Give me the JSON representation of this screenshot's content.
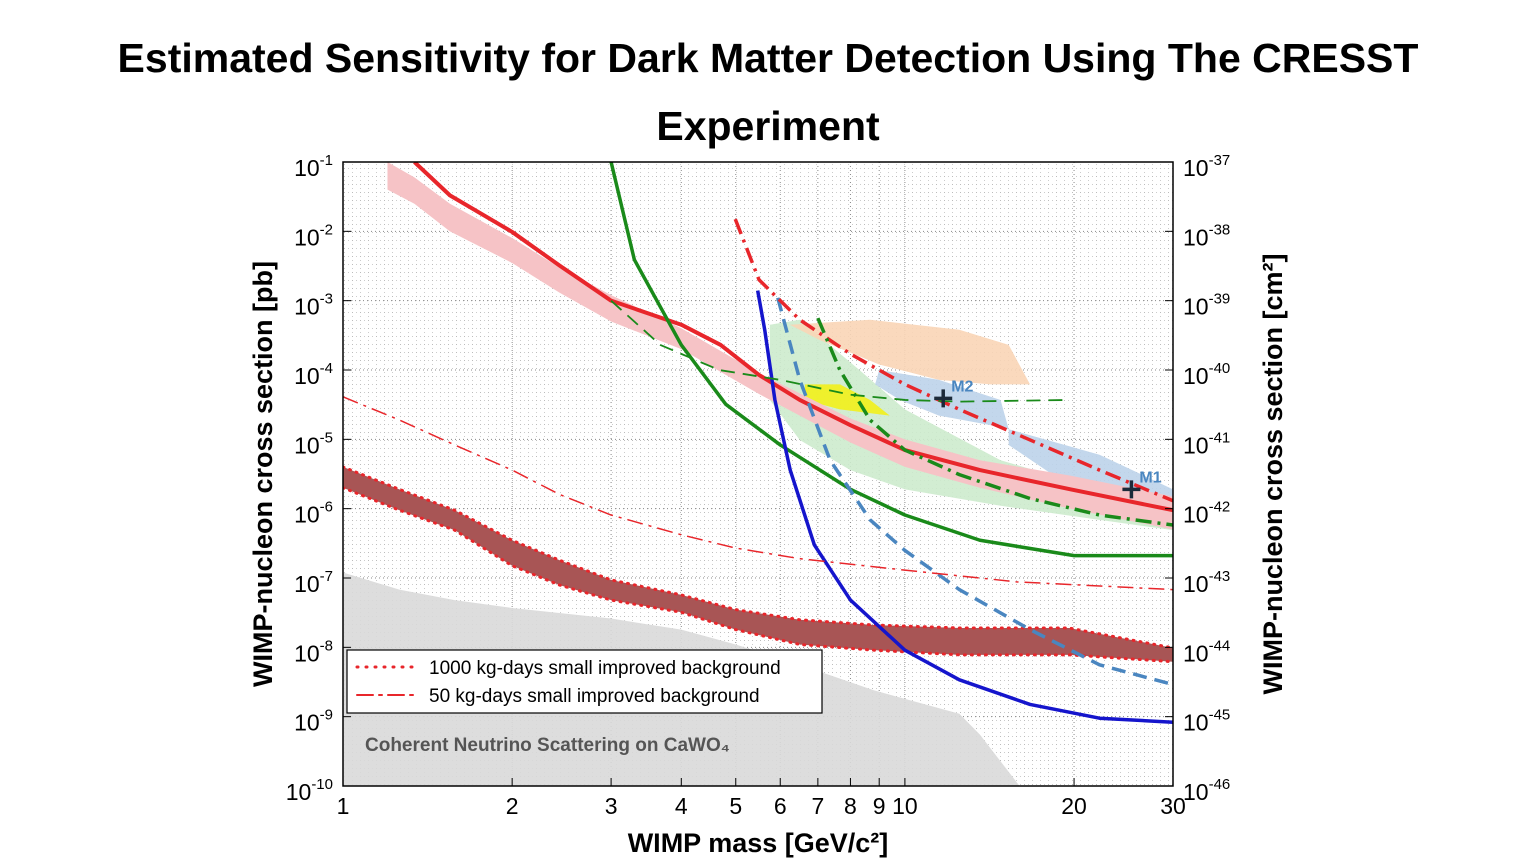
{
  "chart_data": {
    "type": "line",
    "title": "Estimated Sensitivity for Dark Matter Detection Using The CRESST Experiment",
    "x_label": "WIMP mass [GeV/c²]",
    "y_label": "WIMP-nucleon cross section [pb]",
    "y2_label": "WIMP-nucleon cross section [cm²]",
    "annotation": "Coherent Neutrino Scattering on CaWO₄",
    "xscale": "log",
    "yscale": "log",
    "grid": true,
    "legend": "lower left",
    "xlim": [
      1,
      30
    ],
    "xticks": [
      1,
      2,
      3,
      4,
      5,
      6,
      7,
      8,
      9,
      10,
      20,
      30
    ],
    "ylim": [
      1e-10,
      0.1
    ],
    "yticks": [
      {
        "value": 1e-10,
        "label": "10^-10"
      },
      {
        "value": 1e-09,
        "label": "10^-9"
      },
      {
        "value": 1e-08,
        "label": "10^-8"
      },
      {
        "value": 1e-07,
        "label": "10^-7"
      },
      {
        "value": 1e-06,
        "label": "10^-6"
      },
      {
        "value": 1e-05,
        "label": "10^-5"
      },
      {
        "value": 0.0001,
        "label": "10^-4"
      },
      {
        "value": 0.001,
        "label": "10^-3"
      },
      {
        "value": 0.01,
        "label": "10^-2"
      },
      {
        "value": 0.1,
        "label": "10^-1"
      }
    ],
    "y2lim": [
      1e-46,
      1e-37
    ],
    "y2ticks": [
      {
        "value": 1e-46,
        "label": "10^-46"
      },
      {
        "value": 1e-45,
        "label": "10^-45"
      },
      {
        "value": 1e-44,
        "label": "10^-44"
      },
      {
        "value": 1e-43,
        "label": "10^-43"
      },
      {
        "value": 1e-42,
        "label": "10^-42"
      },
      {
        "value": 1e-41,
        "label": "10^-41"
      },
      {
        "value": 1e-40,
        "label": "10^-40"
      },
      {
        "value": 1e-39,
        "label": "10^-39"
      },
      {
        "value": 1e-38,
        "label": "10^-38"
      },
      {
        "value": 1e-37,
        "label": "10^-37"
      }
    ],
    "regions": [
      {
        "color": "#d9d9d9",
        "x": [
          1,
          1.26,
          1.58,
          2,
          3,
          4,
          5,
          6.5,
          8.8,
          12.5,
          13.6,
          16,
          1
        ],
        "values": [
          1.2e-07,
          6.8e-08,
          4.8e-08,
          3.7e-08,
          2.6e-08,
          1.8e-08,
          1.1e-08,
          5.6e-09,
          2.4e-09,
          1.1e-09,
          5.5e-10,
          1e-10,
          1e-10
        ]
      },
      {
        "color": "#cdebcd",
        "x": [
          5.75,
          6.5,
          8.3,
          10,
          14.8,
          22.2,
          30,
          30,
          22.2,
          14.8,
          10,
          8,
          6.5,
          5.75
        ],
        "values": [
          0.00045,
          0.00053,
          0.0001,
          2.7e-05,
          5e-06,
          1.9e-06,
          8.1e-07,
          4.9e-07,
          6.9e-07,
          1.1e-06,
          1.9e-06,
          3.6e-06,
          9.8e-06,
          3.7e-05
        ]
      },
      {
        "color": "#f9d5b6",
        "x": [
          6.24,
          8.67,
          12.5,
          15.3,
          16.7,
          14.2,
          11.5,
          9.0,
          7.06
        ],
        "values": [
          0.00045,
          0.00053,
          0.00038,
          0.00023,
          6.2e-05,
          6.2e-05,
          7.2e-05,
          0.00012,
          0.00027
        ]
      },
      {
        "color": "#bcd3ea",
        "x": [
          9.0,
          11.5,
          14.8,
          15.3,
          14.2,
          11.5,
          9.8,
          8.85
        ],
        "values": [
          0.0001,
          7.2e-05,
          3.7e-05,
          1.4e-05,
          1.6e-05,
          2.2e-05,
          3.7e-05,
          6.2e-05
        ]
      },
      {
        "color": "#bcd3ea",
        "x": [
          15.3,
          22.2,
          30,
          30,
          24.2,
          18.9,
          15.3
        ],
        "values": [
          1.4e-05,
          6e-06,
          1.9e-06,
          1.1e-06,
          1.3e-06,
          2.6e-06,
          8.3e-06
        ]
      },
      {
        "color": "#f2ef1a",
        "x": [
          6.64,
          7.66,
          8.67,
          9.4,
          7.66,
          6.64
        ],
        "values": [
          6.2e-05,
          6.2e-05,
          3.7e-05,
          2.2e-05,
          2.7e-05,
          3.7e-05
        ]
      }
    ],
    "bands": [
      {
        "color": "#f6c3c6",
        "x": [
          1.2,
          1.34,
          1.55,
          2,
          2.43,
          3,
          4,
          5.5,
          8,
          10,
          13.6,
          19.7,
          30
        ],
        "upper": [
          0.1,
          0.06,
          0.025,
          0.008,
          0.003,
          0.0012,
          0.0004,
          9e-05,
          2e-05,
          1e-05,
          5e-06,
          3e-06,
          1.5e-06
        ],
        "lower": [
          0.04,
          0.025,
          0.01,
          0.0035,
          0.0013,
          0.0005,
          0.0002,
          4.5e-05,
          9e-06,
          4e-06,
          2e-06,
          1e-06,
          5e-07
        ]
      },
      {
        "name": "1000 kg-days small improved background",
        "color": "#a85555",
        "edge_color": "#e8262b",
        "x": [
          1,
          1.26,
          1.58,
          2,
          2.43,
          3,
          4,
          5,
          6.5,
          8.8,
          12.5,
          19.6,
          30
        ],
        "upper": [
          4e-06,
          1.9e-06,
          9.5e-07,
          3.5e-07,
          1.8e-07,
          9.4e-08,
          5.7e-08,
          3.5e-08,
          2.5e-08,
          2.1e-08,
          1.9e-08,
          1.9e-08,
          9.8e-09
        ],
        "lower": [
          2e-06,
          9.5e-07,
          4.9e-07,
          1.5e-07,
          7.9e-08,
          4.8e-08,
          3.2e-08,
          1.8e-08,
          1.1e-08,
          9.1e-09,
          7.8e-09,
          7.8e-09,
          6.2e-09
        ]
      }
    ],
    "series": [
      {
        "color": "#e8262b",
        "style": "solid",
        "width": 4,
        "x": [
          1.34,
          1.55,
          2,
          2.43,
          3,
          4,
          4.7,
          5.5,
          6.5,
          8,
          10,
          13.6,
          19.7,
          30
        ],
        "values": [
          0.1,
          0.033,
          0.0098,
          0.0032,
          0.001,
          0.00045,
          0.00023,
          8.5e-05,
          3.7e-05,
          1.6e-05,
          7e-06,
          3.6e-06,
          1.9e-06,
          9.5e-07
        ]
      },
      {
        "color": "#1a8a1a",
        "style": "solid",
        "width": 3.5,
        "x": [
          3,
          3.3,
          4,
          4.8,
          6,
          8,
          10,
          13.6,
          20,
          30
        ],
        "values": [
          0.1,
          0.0039,
          0.00023,
          3.2e-05,
          8.3e-06,
          1.9e-06,
          8.1e-07,
          3.5e-07,
          2.1e-07,
          2.1e-07
        ]
      },
      {
        "color": "#1515cc",
        "style": "solid",
        "width": 3.5,
        "x": [
          5.47,
          5.63,
          5.87,
          6.25,
          6.9,
          8,
          10,
          12.5,
          16.7,
          22.2,
          30
        ],
        "values": [
          0.0014,
          0.00038,
          3.7e-05,
          3.6e-06,
          3e-07,
          4.8e-08,
          9.1e-09,
          3.4e-09,
          1.5e-09,
          9.5e-10,
          8.3e-10
        ]
      },
      {
        "color": "#4a86c0",
        "style": "dashed",
        "width": 3.5,
        "x": [
          5.94,
          6.5,
          7.36,
          8.67,
          10,
          12.5,
          16.7,
          22.2,
          30
        ],
        "values": [
          0.0011,
          7.2e-05,
          5e-06,
          6.9e-07,
          2.5e-07,
          6.8e-08,
          1.8e-08,
          5.6e-09,
          2.9e-09
        ]
      },
      {
        "color": "#e8262b",
        "style": "dashdot",
        "width": 3.5,
        "x": [
          4.99,
          5.5,
          6.5,
          8,
          10,
          12.5,
          16.7,
          22.2,
          30
        ],
        "values": [
          0.015,
          0.002,
          0.00053,
          0.00017,
          6.2e-05,
          2.7e-05,
          9.8e-06,
          3.6e-06,
          1.3e-06
        ]
      },
      {
        "color": "#1a8a1a",
        "style": "dashdot",
        "width": 3.5,
        "x": [
          7.0,
          7.66,
          8.67,
          10,
          12.5,
          16.7,
          22.2,
          30
        ],
        "values": [
          0.00056,
          0.0001,
          1.9e-05,
          7e-06,
          3.1e-06,
          1.4e-06,
          8.1e-07,
          5.8e-07
        ]
      },
      {
        "color": "#1a8a1a",
        "style": "dashed",
        "width": 1.8,
        "x": [
          3,
          3.67,
          4.67,
          6,
          8,
          10,
          12.5,
          19.6
        ],
        "values": [
          0.001,
          0.00023,
          0.0001,
          7.2e-05,
          4.4e-05,
          3.7e-05,
          3.5e-05,
          3.7e-05
        ]
      },
      {
        "name": "50 kg-days small improved background",
        "color": "#e8262b",
        "style": "dashdot",
        "width": 1.5,
        "x": [
          1,
          1.26,
          1.58,
          2,
          2.43,
          3,
          4,
          5,
          6.5,
          10,
          15.8,
          30
        ],
        "values": [
          4.1e-05,
          1.9e-05,
          8.3e-06,
          3.6e-06,
          1.6e-06,
          8.1e-07,
          4.2e-07,
          2.7e-07,
          1.9e-07,
          1.3e-07,
          8.8e-08,
          6.8e-08
        ]
      }
    ],
    "markers": [
      {
        "label": "M2",
        "x": 11.7,
        "y": 3.9e-05,
        "color": "#1c2a3a",
        "label_color": "#4a86c0"
      },
      {
        "label": "M1",
        "x": 25.3,
        "y": 1.9e-06,
        "color": "#1c2a3a",
        "label_color": "#4a86c0"
      }
    ]
  }
}
